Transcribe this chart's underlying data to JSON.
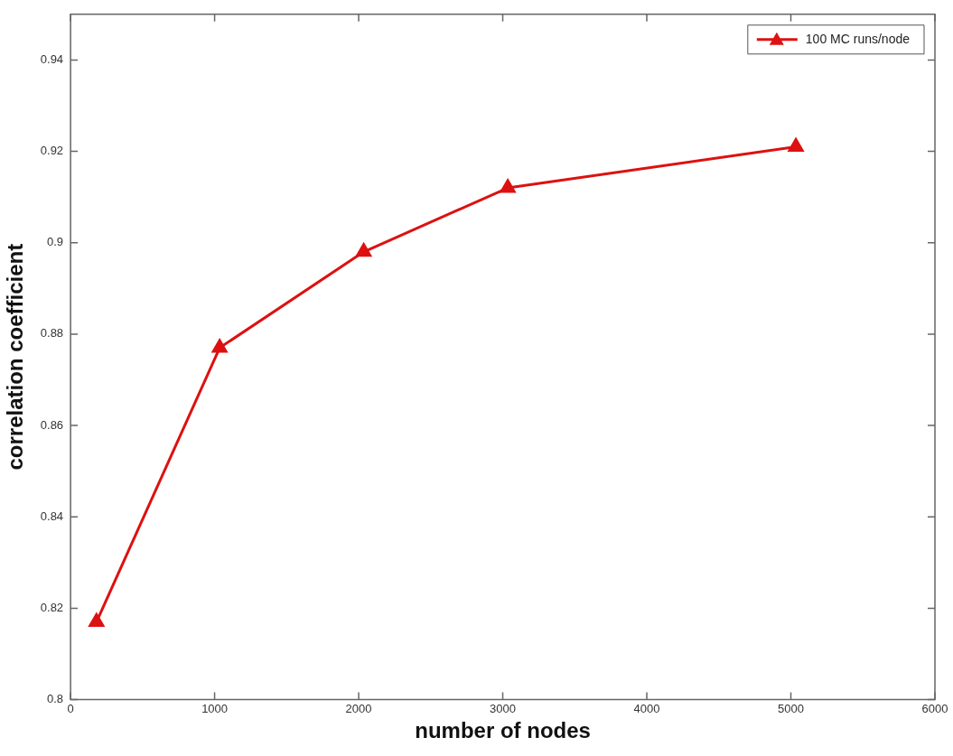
{
  "chart_data": {
    "type": "line",
    "xlabel": "number of nodes",
    "ylabel": "correlation coefficient",
    "x": [
      180,
      1035,
      2035,
      3035,
      5035
    ],
    "series": [
      {
        "name": "100 MC runs/node",
        "color": "#dd1111",
        "values": [
          0.817,
          0.877,
          0.898,
          0.912,
          0.921
        ]
      }
    ],
    "xlim": [
      0,
      6000
    ],
    "xticks": [
      0,
      1000,
      2000,
      3000,
      4000,
      5000,
      6000
    ],
    "ylim": [
      0.8,
      0.95
    ],
    "yticks": [
      0.8,
      0.82,
      0.84,
      0.86,
      0.88,
      0.9,
      0.92,
      0.94
    ],
    "grid": false,
    "legend": "top right",
    "marker": "triangle",
    "line_style": "solid"
  }
}
